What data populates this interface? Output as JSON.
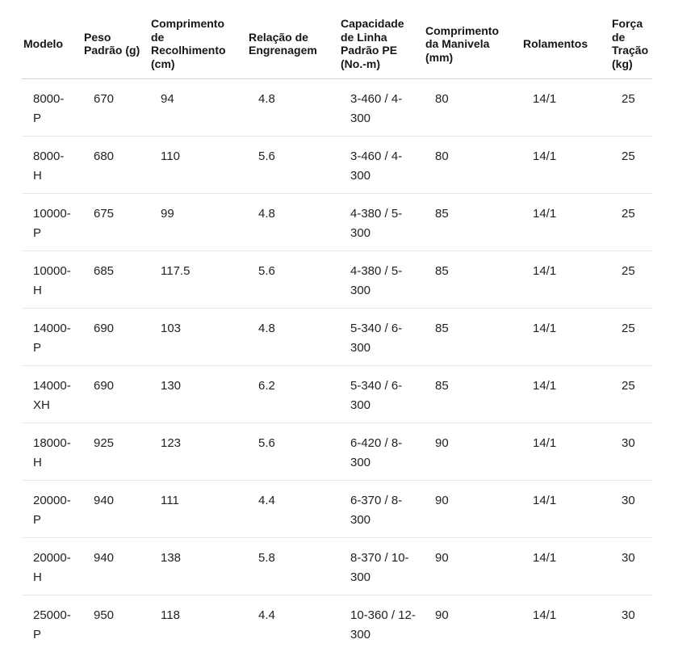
{
  "colors": {
    "background": "#ffffff",
    "text": "#222222",
    "header_text": "#161616",
    "header_border": "#d2d2d2",
    "row_border": "#e7e7e7"
  },
  "table": {
    "headers": [
      "Modelo",
      "Peso Padrão (g)",
      "Comprimento de Recolhimento (cm)",
      "Relação de Engrenagem",
      "Capacidade de Linha Padrão PE (No.-m)",
      "Comprimento da Manivela (mm)",
      "Rolamentos",
      "Força de Tração (kg)"
    ],
    "rows": [
      [
        "8000-P",
        "670",
        "94",
        "4.8",
        "3-460 / 4-300",
        "80",
        "14/1",
        "25"
      ],
      [
        "8000-H",
        "680",
        "110",
        "5.6",
        "3-460 / 4-300",
        "80",
        "14/1",
        "25"
      ],
      [
        "10000-P",
        "675",
        "99",
        "4.8",
        "4-380 / 5-300",
        "85",
        "14/1",
        "25"
      ],
      [
        "10000-H",
        "685",
        "117.5",
        "5.6",
        "4-380 / 5-300",
        "85",
        "14/1",
        "25"
      ],
      [
        "14000-P",
        "690",
        "103",
        "4.8",
        "5-340 / 6-300",
        "85",
        "14/1",
        "25"
      ],
      [
        "14000-XH",
        "690",
        "130",
        "6.2",
        "5-340 / 6-300",
        "85",
        "14/1",
        "25"
      ],
      [
        "18000-H",
        "925",
        "123",
        "5.6",
        "6-420 / 8-300",
        "90",
        "14/1",
        "30"
      ],
      [
        "20000-P",
        "940",
        "111",
        "4.4",
        "6-370 / 8-300",
        "90",
        "14/1",
        "30"
      ],
      [
        "20000-H",
        "940",
        "138",
        "5.8",
        "8-370 / 10-300",
        "90",
        "14/1",
        "30"
      ],
      [
        "25000-P",
        "950",
        "118",
        "4.4",
        "10-360 / 12-300",
        "90",
        "14/1",
        "30"
      ]
    ]
  }
}
